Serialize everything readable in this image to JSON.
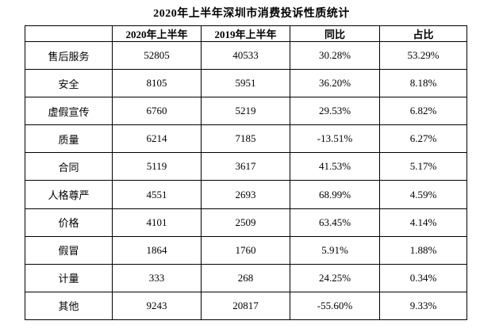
{
  "title": "2020年上半年深圳市消费投诉性质统计",
  "table": {
    "headers": [
      "",
      "2020年上半年",
      "2019年上半年",
      "同比",
      "占比"
    ],
    "rows": [
      [
        "售后服务",
        "52805",
        "40533",
        "30.28%",
        "53.29%"
      ],
      [
        "安全",
        "8105",
        "5951",
        "36.20%",
        "8.18%"
      ],
      [
        "虚假宣传",
        "6760",
        "5219",
        "29.53%",
        "6.82%"
      ],
      [
        "质量",
        "6214",
        "7185",
        "-13.51%",
        "6.27%"
      ],
      [
        "合同",
        "5119",
        "3617",
        "41.53%",
        "5.17%"
      ],
      [
        "人格尊严",
        "4551",
        "2693",
        "68.99%",
        "4.59%"
      ],
      [
        "价格",
        "4101",
        "2509",
        "63.45%",
        "4.14%"
      ],
      [
        "假冒",
        "1864",
        "1760",
        "5.91%",
        "1.88%"
      ],
      [
        "计量",
        "333",
        "268",
        "24.25%",
        "0.34%"
      ],
      [
        "其他",
        "9243",
        "20817",
        "-55.60%",
        "9.33%"
      ]
    ]
  }
}
